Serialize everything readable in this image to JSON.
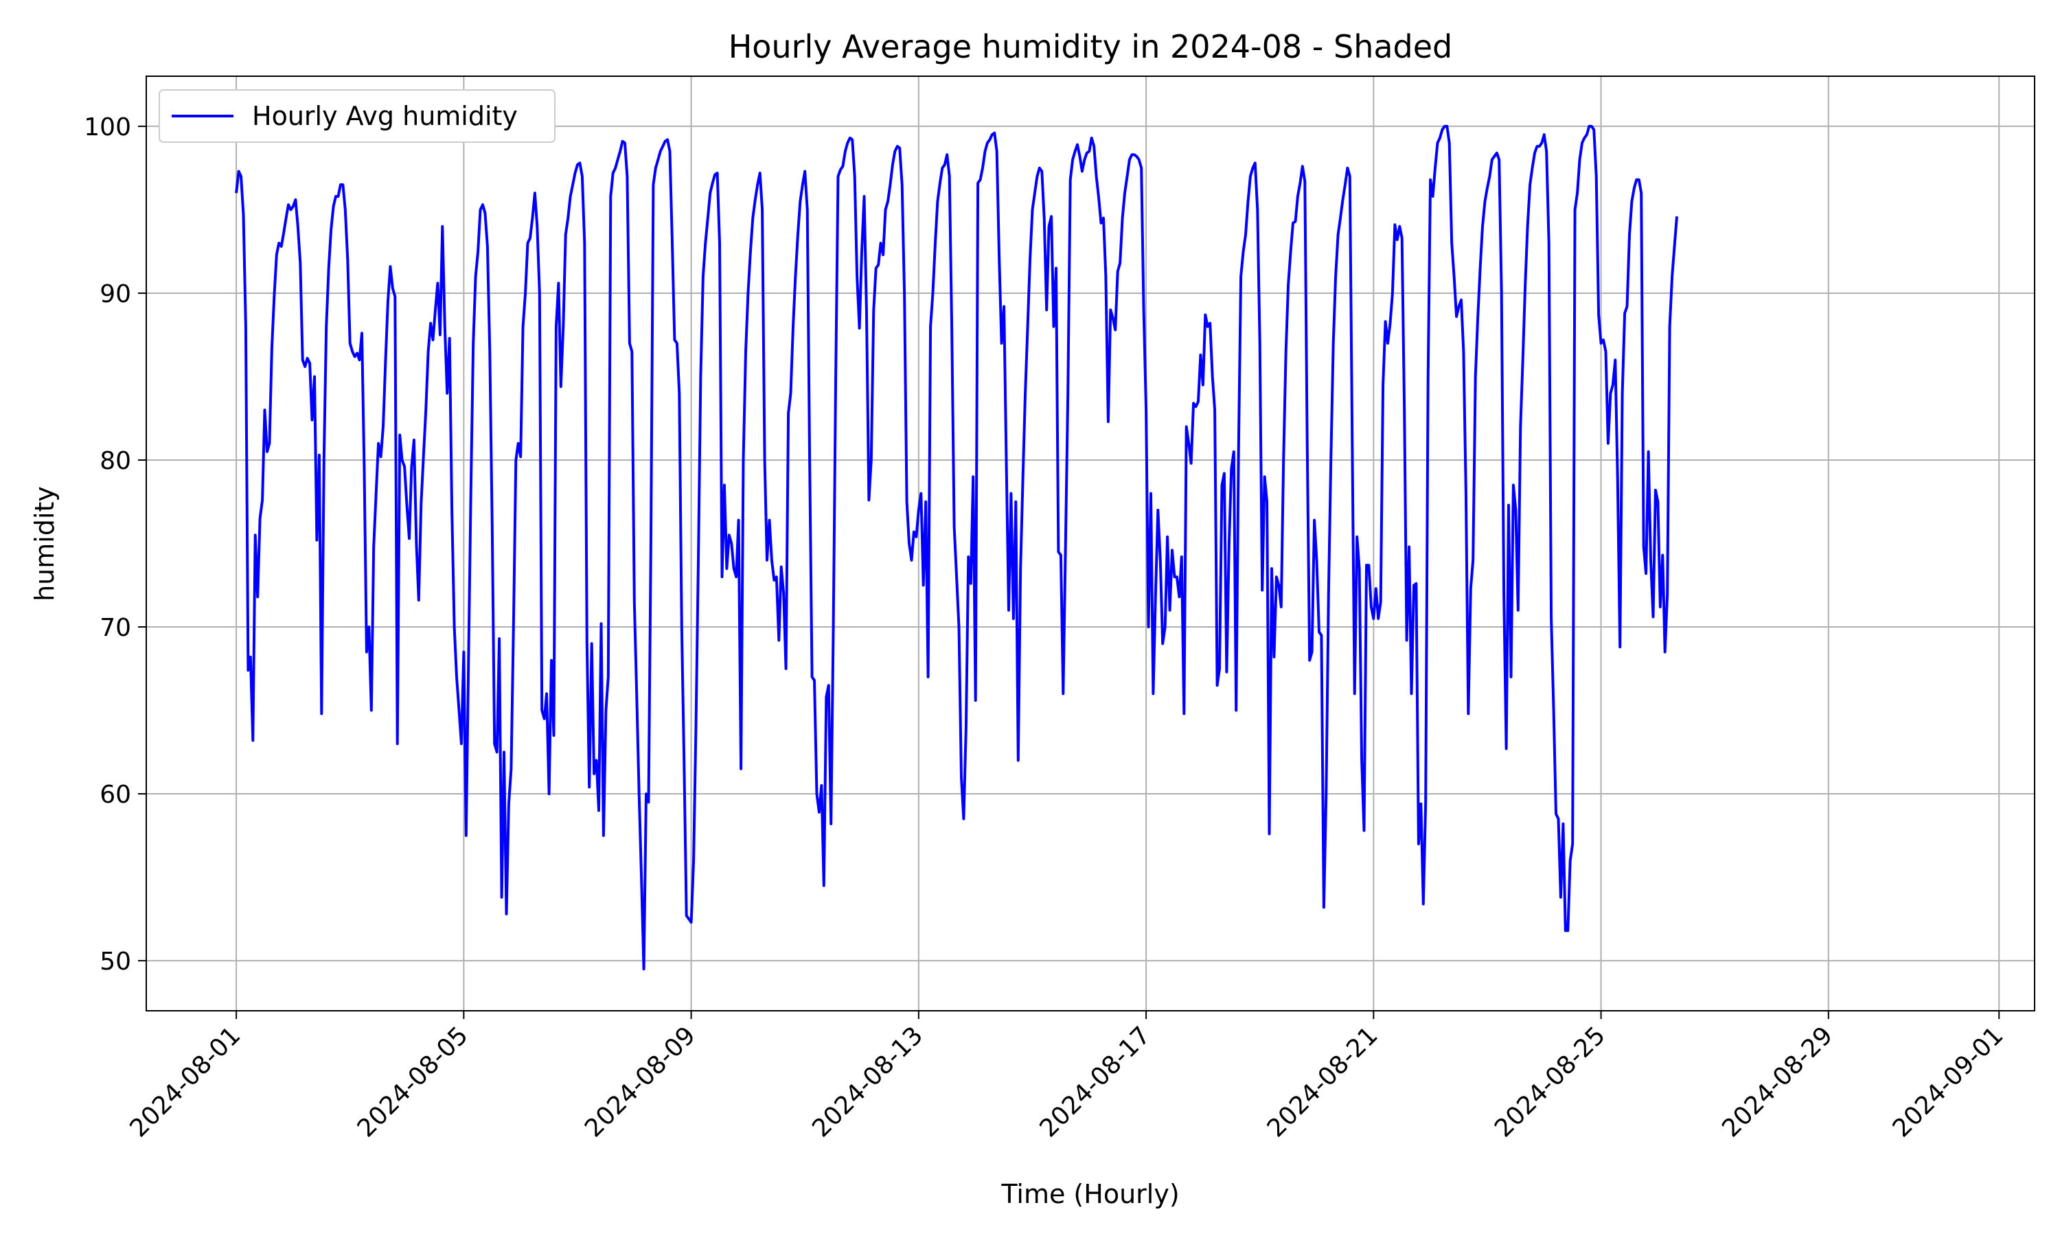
{
  "chart_data": {
    "type": "line",
    "title": "Hourly Average humidity in 2024-08 - Shaded",
    "xlabel": "Time (Hourly)",
    "ylabel": "humidity",
    "x_start": "2024-08-01T00:00",
    "x_range": [
      "2024-07-30T10:00",
      "2024-09-01T15:00"
    ],
    "ylim": [
      47,
      103
    ],
    "grid": true,
    "legend_position": "top-left",
    "x_ticks": [
      "2024-08-01",
      "2024-08-05",
      "2024-08-09",
      "2024-08-13",
      "2024-08-17",
      "2024-08-21",
      "2024-08-25",
      "2024-08-29",
      "2024-09-01"
    ],
    "y_ticks": [
      50,
      60,
      70,
      80,
      90,
      100
    ],
    "series": [
      {
        "name": "Hourly Avg humidity",
        "color": "#0000ff",
        "values": [
          96.0,
          97.3,
          97.0,
          94.7,
          88.0,
          67.4,
          68.2,
          63.2,
          75.5,
          71.8,
          76.5,
          77.6,
          83.0,
          80.5,
          81.0,
          86.7,
          89.8,
          92.3,
          93.0,
          92.8,
          93.6,
          94.5,
          95.3,
          95.0,
          95.2,
          95.6,
          94.0,
          91.8,
          86.0,
          85.6,
          86.1,
          85.8,
          82.4,
          85.0,
          75.2,
          80.3,
          64.8,
          80.1,
          88.0,
          91.5,
          93.8,
          95.2,
          95.8,
          95.8,
          96.5,
          96.5,
          95.0,
          92.0,
          87.0,
          86.5,
          86.2,
          86.4,
          86.0,
          87.6,
          79.6,
          68.5,
          70.0,
          65.0,
          74.8,
          78.0,
          81.0,
          80.2,
          82.0,
          86.0,
          89.5,
          91.6,
          90.3,
          89.8,
          63.0,
          81.5,
          80.0,
          79.6,
          77.3,
          75.3,
          79.6,
          81.2,
          75.0,
          71.6,
          77.4,
          80.2,
          83.0,
          86.5,
          88.2,
          87.2,
          89.0,
          90.6,
          87.5,
          94.0,
          88.0,
          84.0,
          87.3,
          77.0,
          70.0,
          67.0,
          65.0,
          63.0,
          68.5,
          57.5,
          68.0,
          78.0,
          87.0,
          91.0,
          92.5,
          95.0,
          95.3,
          94.8,
          92.8,
          86.5,
          76.0,
          63.0,
          62.5,
          69.3,
          53.8,
          62.5,
          52.8,
          59.4,
          61.5,
          70.0,
          80.0,
          81.0,
          80.2,
          88.0,
          90.0,
          93.0,
          93.3,
          94.5,
          96.0,
          94.0,
          90.0,
          65.0,
          64.5,
          66.0,
          60.0,
          68.0,
          63.5,
          88.0,
          90.6,
          84.4,
          88.0,
          93.5,
          94.5,
          95.8,
          96.5,
          97.2,
          97.7,
          97.8,
          97.0,
          93.0,
          69.0,
          60.4,
          69.0,
          61.2,
          62.0,
          59.0,
          70.2,
          57.5,
          65.0,
          67.0,
          95.8,
          97.2,
          97.5,
          98.0,
          98.5,
          99.1,
          99.0,
          97.0,
          87.0,
          86.5,
          71.5,
          66.0,
          60.0,
          55.0,
          49.5,
          60.0,
          59.5,
          75.0,
          96.5,
          97.5,
          98.0,
          98.5,
          98.8,
          99.1,
          99.2,
          98.5,
          93.0,
          87.2,
          87.0,
          84.0,
          70.0,
          62.0,
          52.7,
          52.5,
          52.3,
          56.0,
          64.0,
          74.0,
          85.0,
          91.0,
          93.0,
          94.5,
          96.0,
          96.6,
          97.1,
          97.2,
          93.0,
          73.0,
          78.5,
          73.5,
          75.5,
          75.0,
          73.5,
          73.0,
          76.4,
          61.5,
          80.0,
          86.5,
          90.0,
          92.5,
          94.5,
          95.6,
          96.5,
          97.2,
          95.0,
          80.0,
          74.0,
          76.4,
          74.0,
          72.8,
          73.0,
          69.2,
          73.6,
          72.0,
          67.5,
          82.8,
          84.0,
          88.0,
          91.0,
          93.5,
          95.5,
          96.5,
          97.3,
          95.0,
          80.0,
          67.0,
          66.8,
          60.0,
          58.9,
          60.5,
          54.5,
          65.8,
          66.5,
          58.2,
          70.0,
          85.0,
          97.0,
          97.4,
          97.6,
          98.5,
          99.0,
          99.3,
          99.2,
          97.0,
          91.0,
          87.9,
          92.5,
          95.8,
          89.0,
          77.6,
          80.0,
          89.0,
          91.5,
          91.7,
          93.0,
          92.3,
          95.0,
          95.5,
          96.5,
          97.7,
          98.5,
          98.8,
          98.7,
          96.5,
          90.0,
          77.5,
          75.0,
          74.0,
          75.7,
          75.4,
          77.0,
          78.0,
          72.5,
          77.5,
          67.0,
          88.0,
          90.0,
          93.0,
          95.5,
          96.6,
          97.5,
          97.7,
          98.3,
          97.0,
          88.0,
          76.0,
          73.0,
          70.0,
          61.0,
          58.5,
          64.0,
          74.2,
          72.6,
          79.0,
          65.6,
          96.6,
          96.8,
          97.5,
          98.5,
          99.0,
          99.2,
          99.5,
          99.6,
          98.5,
          92.0,
          87.0,
          89.2,
          80.0,
          71.0,
          78.0,
          70.5,
          77.5,
          62.0,
          73.5,
          79.0,
          84.0,
          88.0,
          92.0,
          95.0,
          96.0,
          97.0,
          97.5,
          97.3,
          94.5,
          89.0,
          94.0,
          94.6,
          88.0,
          91.5,
          74.5,
          74.3,
          66.0,
          75.0,
          84.0,
          96.8,
          98.0,
          98.5,
          98.9,
          98.2,
          97.3,
          98.0,
          98.4,
          98.5,
          99.3,
          98.8,
          97.0,
          95.7,
          94.2,
          94.5,
          91.0,
          82.3,
          89.0,
          88.5,
          87.8,
          91.3,
          91.8,
          94.5,
          96.0,
          97.0,
          98.0,
          98.3,
          98.3,
          98.2,
          98.0,
          97.5,
          89.0,
          83.0,
          70.0,
          78.0,
          66.0,
          72.0,
          77.0,
          74.0,
          69.0,
          70.0,
          75.4,
          71.0,
          74.6,
          73.0,
          73.0,
          71.8,
          74.2,
          64.8,
          82.0,
          81.0,
          79.8,
          83.4,
          83.2,
          83.5,
          86.3,
          84.5,
          88.7,
          88.0,
          88.2,
          85.0,
          83.0,
          66.5,
          67.5,
          78.5,
          79.2,
          67.3,
          75.0,
          79.5,
          80.5,
          65.0,
          80.5,
          91.0,
          92.5,
          93.5,
          95.5,
          97.0,
          97.5,
          97.8,
          95.0,
          87.0,
          72.2,
          79.0,
          77.5,
          57.6,
          73.5,
          68.2,
          73.0,
          72.5,
          71.2,
          80.0,
          86.5,
          90.5,
          92.5,
          94.2,
          94.3,
          95.8,
          96.6,
          97.6,
          96.7,
          81.0,
          68.0,
          68.5,
          76.4,
          74.0,
          69.7,
          69.5,
          53.2,
          60.0,
          72.0,
          80.0,
          87.0,
          91.0,
          93.5,
          94.5,
          95.6,
          96.5,
          97.5,
          97.0,
          81.0,
          66.0,
          75.4,
          73.5,
          62.0,
          57.8,
          73.7,
          73.7,
          71.2,
          70.5,
          72.3,
          70.5,
          71.5,
          84.5,
          88.3,
          87.0,
          88.2,
          90.0,
          94.1,
          93.2,
          94.0,
          93.3,
          83.0,
          69.2,
          74.8,
          66.0,
          72.5,
          72.6,
          57.0,
          59.4,
          53.4,
          59.5,
          85.0,
          96.8,
          95.8,
          97.5,
          99.0,
          99.3,
          99.8,
          100.0,
          100.0,
          99.0,
          93.0,
          91.0,
          88.6,
          89.2,
          89.6,
          86.5,
          78.0,
          64.8,
          72.3,
          74.0,
          85.0,
          88.5,
          91.5,
          94.0,
          95.5,
          96.3,
          97.0,
          98.0,
          98.2,
          98.4,
          98.0,
          90.0,
          72.0,
          62.7,
          77.3,
          67.0,
          78.5,
          77.0,
          71.0,
          82.0,
          86.0,
          90.5,
          94.0,
          96.5,
          97.5,
          98.4,
          98.8,
          98.8,
          99.0,
          99.5,
          98.5,
          93.0,
          70.5,
          65.0,
          58.8,
          58.5,
          53.8,
          58.2,
          51.8,
          51.8,
          56.0,
          57.0,
          95.0,
          96.0,
          98.0,
          99.0,
          99.3,
          99.5,
          100.0,
          100.0,
          99.8,
          97.0,
          88.7,
          87.0,
          87.2,
          86.5,
          81.0,
          84.0,
          84.5,
          86.0,
          79.0,
          68.8,
          84.0,
          88.8,
          89.2,
          93.5,
          95.5,
          96.3,
          96.8,
          96.8,
          96.0,
          74.8,
          73.2,
          80.5,
          74.0,
          70.6,
          78.2,
          77.5,
          71.2,
          74.3,
          68.5,
          72.0,
          88.0,
          91.0,
          92.8,
          94.6
        ]
      }
    ]
  }
}
